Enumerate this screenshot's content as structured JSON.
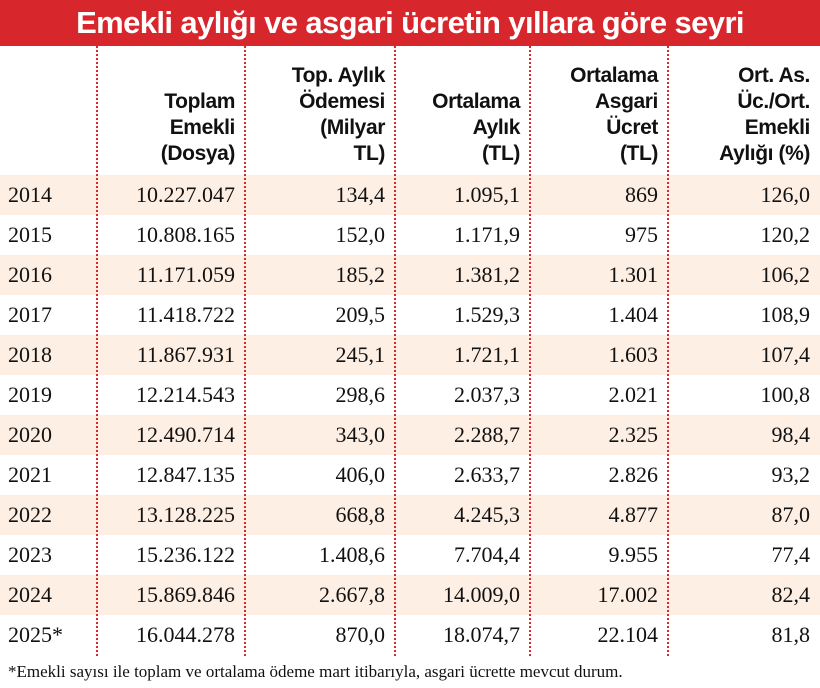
{
  "title": "Emekli aylığı ve asgari ücretin yıllara göre seyri",
  "table": {
    "header": [
      [
        "Toplam",
        "Emekli",
        "(Dosya)"
      ],
      [
        "Top. Aylık",
        "Ödemesi",
        "(Milyar",
        "TL)"
      ],
      [
        "Ortalama",
        "Aylık",
        "(TL)"
      ],
      [
        "Ortalama",
        "Asgari",
        "Ücret",
        "(TL)"
      ],
      [
        "Ort. As.",
        "Üc./Ort.",
        "Emekli",
        "Aylığı (%)"
      ]
    ],
    "rows": [
      [
        "2014",
        "10.227.047",
        "134,4",
        "1.095,1",
        "869",
        "126,0"
      ],
      [
        "2015",
        "10.808.165",
        "152,0",
        "1.171,9",
        "975",
        "120,2"
      ],
      [
        "2016",
        "11.171.059",
        "185,2",
        "1.381,2",
        "1.301",
        "106,2"
      ],
      [
        "2017",
        "11.418.722",
        "209,5",
        "1.529,3",
        "1.404",
        "108,9"
      ],
      [
        "2018",
        "11.867.931",
        "245,1",
        "1.721,1",
        "1.603",
        "107,4"
      ],
      [
        "2019",
        "12.214.543",
        "298,6",
        "2.037,3",
        "2.021",
        "100,8"
      ],
      [
        "2020",
        "12.490.714",
        "343,0",
        "2.288,7",
        "2.325",
        "98,4"
      ],
      [
        "2021",
        "12.847.135",
        "406,0",
        "2.633,7",
        "2.826",
        "93,2"
      ],
      [
        "2022",
        "13.128.225",
        "668,8",
        "4.245,3",
        "4.877",
        "87,0"
      ],
      [
        "2023",
        "15.236.122",
        "1.408,6",
        "7.704,4",
        "9.955",
        "77,4"
      ],
      [
        "2024",
        "15.869.846",
        "2.667,8",
        "14.009,0",
        "17.002",
        "82,4"
      ],
      [
        "2025*",
        "16.044.278",
        "870,0",
        "18.074,7",
        "22.104",
        "81,8"
      ]
    ]
  },
  "footnote": "*Emekli sayısı ile toplam ve ortalama ödeme mart itibarıyla, asgari ücrette mevcut durum."
}
